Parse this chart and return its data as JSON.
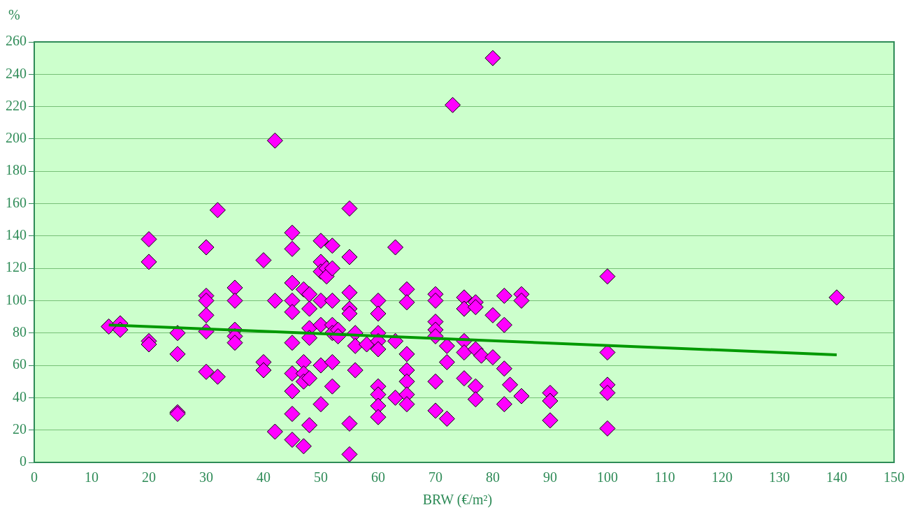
{
  "chart_data": {
    "type": "scatter",
    "xlabel": "BRW (€/m²)",
    "ylabel": "%",
    "xlim": [
      0,
      150
    ],
    "xticks": [
      0,
      10,
      20,
      30,
      40,
      50,
      60,
      70,
      80,
      90,
      100,
      110,
      120,
      130,
      140,
      150
    ],
    "ylim": [
      0,
      260
    ],
    "yticks": [
      0,
      20,
      40,
      60,
      80,
      100,
      120,
      140,
      160,
      180,
      200,
      220,
      240,
      260
    ],
    "grid": "y",
    "legend": false,
    "marker": "diamond",
    "series": [
      {
        "color": "#ff00ff",
        "x": [
          13,
          15,
          15,
          20,
          20,
          20,
          20,
          25,
          25,
          25,
          25,
          30,
          30,
          30,
          30,
          30,
          30,
          32,
          32,
          35,
          35,
          35,
          35,
          35,
          40,
          40,
          40,
          42,
          42,
          42,
          45,
          45,
          45,
          45,
          45,
          45,
          45,
          45,
          45,
          45,
          47,
          47,
          47,
          47,
          47,
          48,
          48,
          48,
          48,
          48,
          48,
          50,
          50,
          50,
          50,
          50,
          50,
          50,
          51,
          51,
          52,
          52,
          52,
          52,
          52,
          52,
          52,
          53,
          53,
          55,
          55,
          55,
          55,
          55,
          55,
          55,
          56,
          56,
          56,
          58,
          60,
          60,
          60,
          60,
          60,
          60,
          60,
          60,
          60,
          63,
          63,
          63,
          65,
          65,
          65,
          65,
          65,
          65,
          65,
          70,
          70,
          70,
          70,
          70,
          70,
          70,
          72,
          72,
          72,
          73,
          75,
          75,
          75,
          75,
          75,
          77,
          77,
          77,
          77,
          77,
          78,
          80,
          80,
          80,
          82,
          82,
          82,
          82,
          83,
          85,
          85,
          85,
          90,
          90,
          90,
          100,
          100,
          100,
          100,
          100,
          140
        ],
        "values": [
          84,
          86,
          82,
          138,
          124,
          75,
          73,
          80,
          67,
          31,
          30,
          133,
          103,
          100,
          91,
          81,
          56,
          156,
          53,
          108,
          100,
          82,
          78,
          74,
          125,
          62,
          57,
          199,
          100,
          19,
          142,
          132,
          111,
          100,
          93,
          74,
          55,
          44,
          30,
          14,
          107,
          62,
          55,
          50,
          10,
          104,
          95,
          83,
          77,
          52,
          23,
          137,
          124,
          118,
          100,
          85,
          60,
          36,
          120,
          115,
          134,
          120,
          100,
          85,
          80,
          62,
          47,
          82,
          78,
          157,
          127,
          105,
          95,
          92,
          24,
          5,
          80,
          72,
          57,
          73,
          100,
          92,
          80,
          75,
          70,
          47,
          42,
          35,
          28,
          133,
          75,
          40,
          107,
          99,
          67,
          57,
          50,
          42,
          36,
          104,
          100,
          87,
          82,
          78,
          50,
          32,
          72,
          62,
          27,
          221,
          102,
          95,
          75,
          68,
          52,
          99,
          96,
          70,
          47,
          39,
          66,
          250,
          91,
          65,
          103,
          85,
          58,
          36,
          48,
          104,
          100,
          41,
          43,
          38,
          26,
          115,
          68,
          48,
          43,
          21,
          102
        ]
      },
      {
        "type": "line",
        "color": "#009900",
        "marker": "none",
        "line_style": "solid",
        "x": [
          13,
          140
        ],
        "values": [
          85,
          66.5
        ]
      }
    ]
  }
}
